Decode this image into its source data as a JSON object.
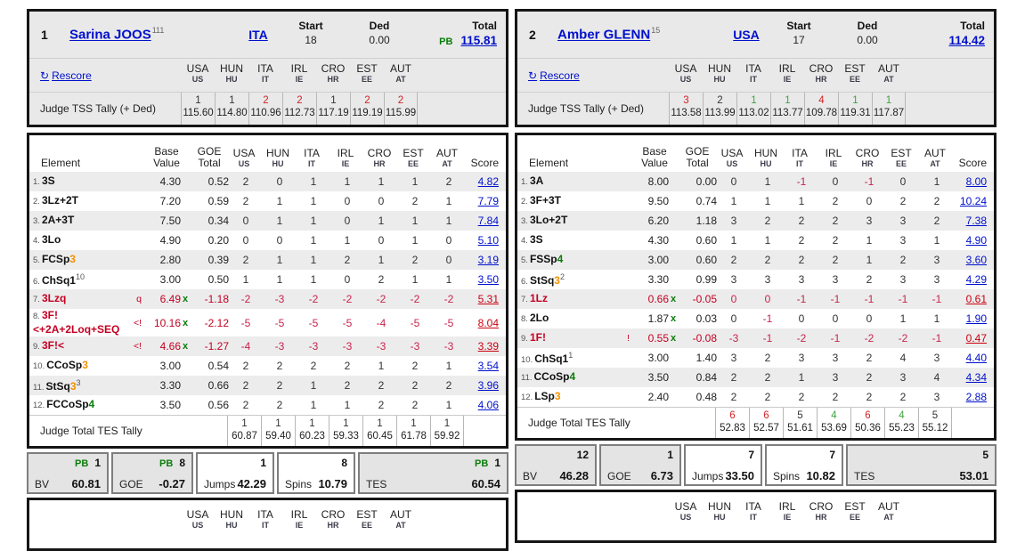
{
  "labels": {
    "start": "Start",
    "ded": "Ded",
    "total": "Total",
    "pb": "PB",
    "rescore": "Rescore",
    "rescore_icon": "↻",
    "tss_tally": "Judge TSS Tally (+ Ded)",
    "tes_tally": "Judge Total TES Tally",
    "element": "Element",
    "base1": "Base",
    "base2": "Value",
    "goe1": "GOE",
    "goe2": "Total",
    "score": "Score",
    "bv": "BV",
    "goe": "GOE",
    "jumps": "Jumps",
    "spins": "Spins",
    "tes": "TES"
  },
  "colors": {
    "link_blue": "#0010cc",
    "red": "#c40022",
    "green": "#0a7d0a",
    "orange": "#f29000",
    "rank_red": "#d42222",
    "rank_green": "#3fa33f"
  },
  "judges": [
    {
      "code": "USA",
      "sub": "US"
    },
    {
      "code": "HUN",
      "sub": "HU"
    },
    {
      "code": "ITA",
      "sub": "IT"
    },
    {
      "code": "IRL",
      "sub": "IE"
    },
    {
      "code": "CRO",
      "sub": "HR"
    },
    {
      "code": "EST",
      "sub": "EE"
    },
    {
      "code": "AUT",
      "sub": "AT"
    }
  ],
  "panels": [
    {
      "rank": "1",
      "name": "Sarina JOOS",
      "name_sup": "111",
      "nation": "ITA",
      "start": "18",
      "ded": "0.00",
      "pb": true,
      "total": "115.81",
      "tss": {
        "ranks": [
          [
            "1",
            "k"
          ],
          [
            "1",
            "k"
          ],
          [
            "2",
            "r"
          ],
          [
            "2",
            "r"
          ],
          [
            "1",
            "k"
          ],
          [
            "2",
            "r"
          ],
          [
            "2",
            "r"
          ]
        ],
        "values": [
          "115.60",
          "114.80",
          "110.96",
          "112.73",
          "117.19",
          "119.19",
          "115.99"
        ]
      },
      "elements": [
        {
          "num": "1.",
          "parts": [
            [
              "3S",
              "k"
            ]
          ],
          "sup": "",
          "flag": "",
          "bv": "4.30",
          "bvr": false,
          "x": false,
          "goe": "0.52",
          "j": [
            "2",
            "0",
            "1",
            "1",
            "1",
            "1",
            "2"
          ],
          "ar": false,
          "score": "4.82",
          "sr": false
        },
        {
          "num": "2.",
          "parts": [
            [
              "3Lz+2T",
              "k"
            ]
          ],
          "sup": "",
          "flag": "",
          "bv": "7.20",
          "bvr": false,
          "x": false,
          "goe": "0.59",
          "j": [
            "2",
            "1",
            "1",
            "0",
            "0",
            "2",
            "1"
          ],
          "ar": false,
          "score": "7.79",
          "sr": false
        },
        {
          "num": "3.",
          "parts": [
            [
              "2A+3T",
              "k"
            ]
          ],
          "sup": "",
          "flag": "",
          "bv": "7.50",
          "bvr": false,
          "x": false,
          "goe": "0.34",
          "j": [
            "0",
            "1",
            "1",
            "0",
            "1",
            "1",
            "1"
          ],
          "ar": false,
          "score": "7.84",
          "sr": false
        },
        {
          "num": "4.",
          "parts": [
            [
              "3Lo",
              "k"
            ]
          ],
          "sup": "",
          "flag": "",
          "bv": "4.90",
          "bvr": false,
          "x": false,
          "goe": "0.20",
          "j": [
            "0",
            "0",
            "1",
            "1",
            "0",
            "1",
            "0"
          ],
          "ar": false,
          "score": "5.10",
          "sr": false
        },
        {
          "num": "5.",
          "parts": [
            [
              "FCSp",
              "k"
            ],
            [
              "3",
              "o"
            ]
          ],
          "sup": "",
          "flag": "",
          "bv": "2.80",
          "bvr": false,
          "x": false,
          "goe": "0.39",
          "j": [
            "2",
            "1",
            "1",
            "2",
            "1",
            "2",
            "0"
          ],
          "ar": false,
          "score": "3.19",
          "sr": false
        },
        {
          "num": "6.",
          "parts": [
            [
              "ChSq1",
              "k"
            ]
          ],
          "sup": "10",
          "flag": "",
          "bv": "3.00",
          "bvr": false,
          "x": false,
          "goe": "0.50",
          "j": [
            "1",
            "1",
            "1",
            "0",
            "2",
            "1",
            "1"
          ],
          "ar": false,
          "score": "3.50",
          "sr": false
        },
        {
          "num": "7.",
          "parts": [
            [
              "3Lzq",
              "r"
            ]
          ],
          "sup": "",
          "flag": "q",
          "bv": "6.49",
          "bvr": true,
          "x": true,
          "goe": "-1.18",
          "j": [
            "-2",
            "-3",
            "-2",
            "-2",
            "-2",
            "-2",
            "-2"
          ],
          "ar": true,
          "score": "5.31",
          "sr": true
        },
        {
          "num": "8.",
          "parts": [
            [
              "3F!",
              "r"
            ],
            [
              "<+2A+2Loq+SEQ",
              "r"
            ]
          ],
          "sup": "",
          "flag": "<!",
          "bv": "10.16",
          "bvr": true,
          "x": true,
          "goe": "-2.12",
          "j": [
            "-5",
            "-5",
            "-5",
            "-5",
            "-4",
            "-5",
            "-5"
          ],
          "ar": true,
          "score": "8.04",
          "sr": true
        },
        {
          "num": "9.",
          "parts": [
            [
              "3F!<",
              "r"
            ]
          ],
          "sup": "",
          "flag": "<!",
          "bv": "4.66",
          "bvr": true,
          "x": true,
          "goe": "-1.27",
          "j": [
            "-4",
            "-3",
            "-3",
            "-3",
            "-3",
            "-3",
            "-3"
          ],
          "ar": true,
          "score": "3.39",
          "sr": true
        },
        {
          "num": "10.",
          "parts": [
            [
              "CCoSp",
              "k"
            ],
            [
              "3",
              "o"
            ]
          ],
          "sup": "",
          "flag": "",
          "bv": "3.00",
          "bvr": false,
          "x": false,
          "goe": "0.54",
          "j": [
            "2",
            "2",
            "2",
            "2",
            "1",
            "2",
            "1"
          ],
          "ar": false,
          "score": "3.54",
          "sr": false
        },
        {
          "num": "11.",
          "parts": [
            [
              "StSq",
              "k"
            ],
            [
              "3",
              "o"
            ]
          ],
          "sup": "3",
          "flag": "",
          "bv": "3.30",
          "bvr": false,
          "x": false,
          "goe": "0.66",
          "j": [
            "2",
            "2",
            "1",
            "2",
            "2",
            "2",
            "2"
          ],
          "ar": false,
          "score": "3.96",
          "sr": false
        },
        {
          "num": "12.",
          "parts": [
            [
              "FCCoSp",
              "k"
            ],
            [
              "4",
              "g"
            ]
          ],
          "sup": "",
          "flag": "",
          "bv": "3.50",
          "bvr": false,
          "x": false,
          "goe": "0.56",
          "j": [
            "2",
            "2",
            "1",
            "1",
            "2",
            "2",
            "1"
          ],
          "ar": false,
          "score": "4.06",
          "sr": false
        }
      ],
      "tes": {
        "ranks": [
          [
            "1",
            "k"
          ],
          [
            "1",
            "k"
          ],
          [
            "1",
            "k"
          ],
          [
            "1",
            "k"
          ],
          [
            "1",
            "k"
          ],
          [
            "1",
            "k"
          ],
          [
            "1",
            "k"
          ]
        ],
        "values": [
          "60.87",
          "59.40",
          "60.23",
          "59.33",
          "60.45",
          "61.78",
          "59.92"
        ]
      },
      "summary": [
        {
          "label": "BV",
          "pb": true,
          "rank": "1",
          "value": "60.81",
          "white": false
        },
        {
          "label": "GOE",
          "pb": true,
          "rank": "8",
          "value": "-0.27",
          "white": false
        },
        {
          "label": "Jumps",
          "pb": false,
          "rank": "1",
          "value": "42.29",
          "white": true
        },
        {
          "label": "Spins",
          "pb": false,
          "rank": "8",
          "value": "10.79",
          "white": true
        },
        {
          "label": "TES",
          "pb": true,
          "rank": "1",
          "value": "60.54",
          "white": false
        }
      ]
    },
    {
      "rank": "2",
      "name": "Amber GLENN",
      "name_sup": "15",
      "nation": "USA",
      "start": "17",
      "ded": "0.00",
      "pb": false,
      "total": "114.42",
      "tss": {
        "ranks": [
          [
            "3",
            "r"
          ],
          [
            "2",
            "k"
          ],
          [
            "1",
            "g"
          ],
          [
            "1",
            "g"
          ],
          [
            "4",
            "r"
          ],
          [
            "1",
            "g"
          ],
          [
            "1",
            "g"
          ]
        ],
        "values": [
          "113.58",
          "113.99",
          "113.02",
          "113.77",
          "109.78",
          "119.31",
          "117.87"
        ]
      },
      "elements": [
        {
          "num": "1.",
          "parts": [
            [
              "3A",
              "k"
            ]
          ],
          "sup": "",
          "flag": "",
          "bv": "8.00",
          "bvr": false,
          "x": false,
          "goe": "0.00",
          "j": [
            "0",
            "1",
            "-1",
            "0",
            "-1",
            "0",
            "1"
          ],
          "ar": false,
          "score": "8.00",
          "sr": false
        },
        {
          "num": "2.",
          "parts": [
            [
              "3F+3T",
              "k"
            ]
          ],
          "sup": "",
          "flag": "",
          "bv": "9.50",
          "bvr": false,
          "x": false,
          "goe": "0.74",
          "j": [
            "1",
            "1",
            "1",
            "2",
            "0",
            "2",
            "2"
          ],
          "ar": false,
          "score": "10.24",
          "sr": false
        },
        {
          "num": "3.",
          "parts": [
            [
              "3Lo+2T",
              "k"
            ]
          ],
          "sup": "",
          "flag": "",
          "bv": "6.20",
          "bvr": false,
          "x": false,
          "goe": "1.18",
          "j": [
            "3",
            "2",
            "2",
            "2",
            "3",
            "3",
            "2"
          ],
          "ar": false,
          "score": "7.38",
          "sr": false
        },
        {
          "num": "4.",
          "parts": [
            [
              "3S",
              "k"
            ]
          ],
          "sup": "",
          "flag": "",
          "bv": "4.30",
          "bvr": false,
          "x": false,
          "goe": "0.60",
          "j": [
            "1",
            "1",
            "2",
            "2",
            "1",
            "3",
            "1"
          ],
          "ar": false,
          "score": "4.90",
          "sr": false
        },
        {
          "num": "5.",
          "parts": [
            [
              "FSSp",
              "k"
            ],
            [
              "4",
              "g"
            ]
          ],
          "sup": "",
          "flag": "",
          "bv": "3.00",
          "bvr": false,
          "x": false,
          "goe": "0.60",
          "j": [
            "2",
            "2",
            "2",
            "2",
            "1",
            "2",
            "3"
          ],
          "ar": false,
          "score": "3.60",
          "sr": false
        },
        {
          "num": "6.",
          "parts": [
            [
              "StSq",
              "k"
            ],
            [
              "3",
              "o"
            ]
          ],
          "sup": "2",
          "flag": "",
          "bv": "3.30",
          "bvr": false,
          "x": false,
          "goe": "0.99",
          "j": [
            "3",
            "3",
            "3",
            "3",
            "2",
            "3",
            "3"
          ],
          "ar": false,
          "score": "4.29",
          "sr": false
        },
        {
          "num": "7.",
          "parts": [
            [
              "1Lz",
              "r"
            ]
          ],
          "sup": "",
          "flag": "",
          "bv": "0.66",
          "bvr": true,
          "x": true,
          "goe": "-0.05",
          "j": [
            "0",
            "0",
            "-1",
            "-1",
            "-1",
            "-1",
            "-1"
          ],
          "ar": true,
          "score": "0.61",
          "sr": true
        },
        {
          "num": "8.",
          "parts": [
            [
              "2Lo",
              "k"
            ]
          ],
          "sup": "",
          "flag": "",
          "bv": "1.87",
          "bvr": false,
          "x": true,
          "goe": "0.03",
          "j": [
            "0",
            "-1",
            "0",
            "0",
            "0",
            "1",
            "1"
          ],
          "ar": false,
          "score": "1.90",
          "sr": false
        },
        {
          "num": "9.",
          "parts": [
            [
              "1F!",
              "r"
            ]
          ],
          "sup": "",
          "flag": "!",
          "bv": "0.55",
          "bvr": true,
          "x": true,
          "goe": "-0.08",
          "j": [
            "-3",
            "-1",
            "-2",
            "-1",
            "-2",
            "-2",
            "-1"
          ],
          "ar": true,
          "score": "0.47",
          "sr": true
        },
        {
          "num": "10.",
          "parts": [
            [
              "ChSq1",
              "k"
            ]
          ],
          "sup": "1",
          "flag": "",
          "bv": "3.00",
          "bvr": false,
          "x": false,
          "goe": "1.40",
          "j": [
            "3",
            "2",
            "3",
            "3",
            "2",
            "4",
            "3"
          ],
          "ar": false,
          "score": "4.40",
          "sr": false
        },
        {
          "num": "11.",
          "parts": [
            [
              "CCoSp",
              "k"
            ],
            [
              "4",
              "g"
            ]
          ],
          "sup": "",
          "flag": "",
          "bv": "3.50",
          "bvr": false,
          "x": false,
          "goe": "0.84",
          "j": [
            "2",
            "2",
            "1",
            "3",
            "2",
            "3",
            "4"
          ],
          "ar": false,
          "score": "4.34",
          "sr": false
        },
        {
          "num": "12.",
          "parts": [
            [
              "LSp",
              "k"
            ],
            [
              "3",
              "o"
            ]
          ],
          "sup": "",
          "flag": "",
          "bv": "2.40",
          "bvr": false,
          "x": false,
          "goe": "0.48",
          "j": [
            "2",
            "2",
            "2",
            "2",
            "2",
            "2",
            "3"
          ],
          "ar": false,
          "score": "2.88",
          "sr": false
        }
      ],
      "tes": {
        "ranks": [
          [
            "6",
            "r"
          ],
          [
            "6",
            "r"
          ],
          [
            "5",
            "k"
          ],
          [
            "4",
            "g"
          ],
          [
            "6",
            "r"
          ],
          [
            "4",
            "g"
          ],
          [
            "5",
            "k"
          ]
        ],
        "values": [
          "52.83",
          "52.57",
          "51.61",
          "53.69",
          "50.36",
          "55.23",
          "55.12"
        ]
      },
      "summary": [
        {
          "label": "BV",
          "pb": false,
          "rank": "12",
          "value": "46.28",
          "white": false
        },
        {
          "label": "GOE",
          "pb": false,
          "rank": "1",
          "value": "6.73",
          "white": false
        },
        {
          "label": "Jumps",
          "pb": false,
          "rank": "7",
          "value": "33.50",
          "white": true
        },
        {
          "label": "Spins",
          "pb": false,
          "rank": "7",
          "value": "10.82",
          "white": true
        },
        {
          "label": "TES",
          "pb": false,
          "rank": "5",
          "value": "53.01",
          "white": false
        }
      ]
    }
  ]
}
